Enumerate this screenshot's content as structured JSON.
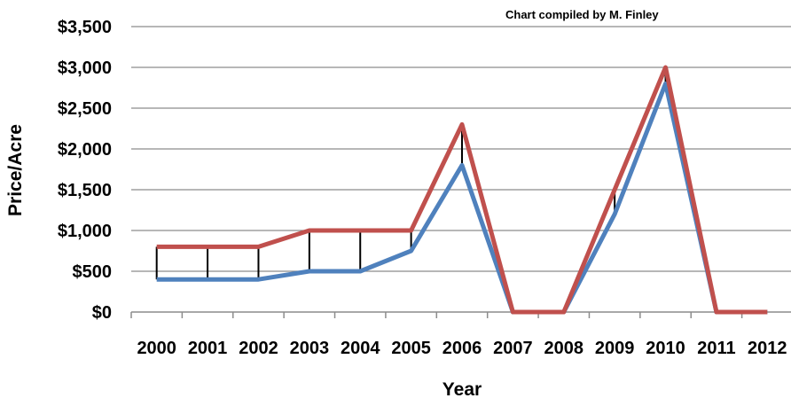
{
  "chart_data": {
    "type": "line",
    "note": "Chart compiled by M. Finley",
    "xlabel": "Year",
    "ylabel": "Price/Acre",
    "categories": [
      "2000",
      "2001",
      "2002",
      "2003",
      "2004",
      "2005",
      "2006",
      "2007",
      "2008",
      "2009",
      "2010",
      "2011",
      "2012"
    ],
    "y_ticks": [
      "$0",
      "$500",
      "$1,000",
      "$1,500",
      "$2,000",
      "$2,500",
      "$3,000",
      "$3,500"
    ],
    "ylim": [
      0,
      3500
    ],
    "grid": true,
    "legend": "none",
    "series": [
      {
        "color": "#c0504d",
        "values": [
          800,
          800,
          800,
          1000,
          1000,
          1000,
          2300,
          0,
          0,
          1500,
          3000,
          0,
          0
        ]
      },
      {
        "color": "#4f81bd",
        "values": [
          400,
          400,
          400,
          500,
          500,
          750,
          1800,
          0,
          0,
          1200,
          2800,
          0,
          0
        ]
      }
    ],
    "drop_lines": true
  }
}
